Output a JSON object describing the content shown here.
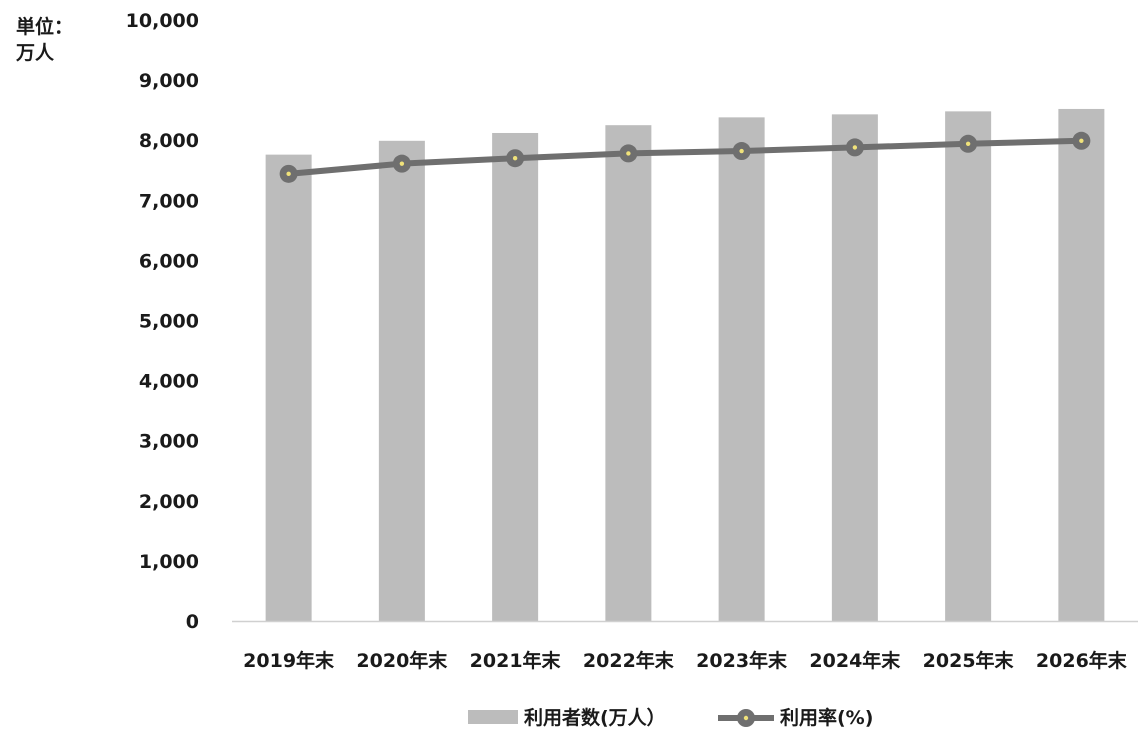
{
  "unit_label": [
    "単位：",
    "万人"
  ],
  "colors": {
    "bar": "#bcbcbc",
    "line": "#6f6f6f",
    "marker_dot": "#f0e27a",
    "axis": "#d0d0d0",
    "text": "#1a1a1a"
  },
  "chart_data": {
    "type": "bar",
    "categories": [
      "2019年末",
      "2020年末",
      "2021年末",
      "2022年末",
      "2023年末",
      "2024年末",
      "2025年末",
      "2026年末"
    ],
    "ylim": [
      0,
      10000
    ],
    "yticks": [
      "0",
      "1,000",
      "2,000",
      "3,000",
      "4,000",
      "5,000",
      "6,000",
      "7,000",
      "8,000",
      "9,000",
      "10,000"
    ],
    "yticks_values": [
      0,
      1000,
      2000,
      3000,
      4000,
      5000,
      6000,
      7000,
      8000,
      9000,
      10000
    ],
    "grid": false,
    "legend_position": "bottom",
    "series": [
      {
        "name": "利用者数(万人）",
        "type": "bar",
        "values": [
          7760,
          7990,
          8120,
          8250,
          8380,
          8430,
          8480,
          8520
        ]
      },
      {
        "name": "利用率(%)",
        "type": "line",
        "values": [
          7440,
          7610,
          7700,
          7780,
          7820,
          7880,
          7940,
          7990
        ]
      }
    ]
  }
}
